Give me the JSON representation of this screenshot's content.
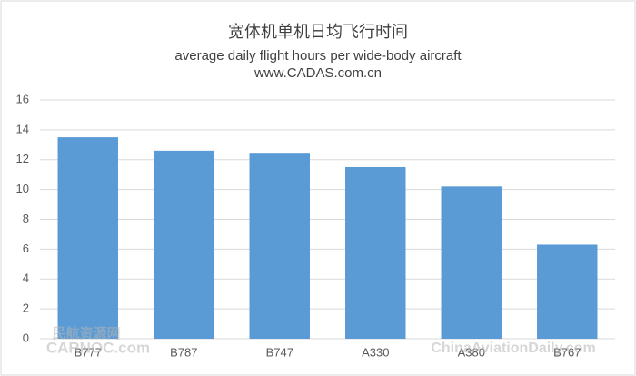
{
  "chart_data": {
    "type": "bar",
    "title": "宽体机单机日均飞行时间",
    "subtitle": "average daily flight hours per wide-body aircraft",
    "source": "www.CADAS.com.cn",
    "categories": [
      "B777",
      "B787",
      "B747",
      "A330",
      "A380",
      "B767"
    ],
    "values": [
      13.5,
      12.6,
      12.4,
      11.5,
      10.2,
      6.3
    ],
    "color": "#5b9bd5",
    "ylim": [
      0,
      16
    ],
    "yticks": [
      0,
      2,
      4,
      6,
      8,
      10,
      12,
      14,
      16
    ],
    "grid": true
  },
  "watermarks": [
    "民航资源网",
    "CARNOC.com",
    "ChinaAviationDaily.com"
  ]
}
